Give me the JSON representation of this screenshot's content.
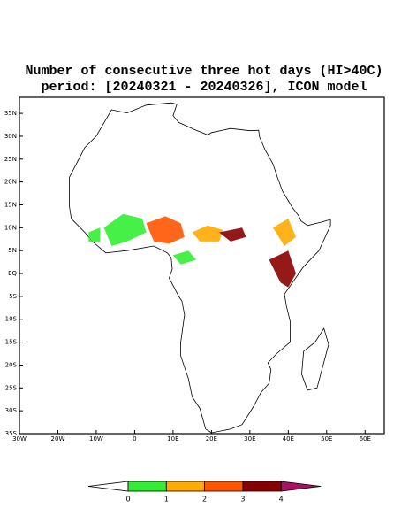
{
  "map": {
    "title": "Number of consecutive three hot days (HI>40C)",
    "subtitle": "period: [20240321 - 20240326], ICON model",
    "xlim": [
      -30,
      65
    ],
    "ylim": [
      -35,
      38.5
    ],
    "xticks": [
      {
        "value": -30,
        "label": "30W"
      },
      {
        "value": -20,
        "label": "20W"
      },
      {
        "value": -10,
        "label": "10W"
      },
      0,
      {
        "value": 10,
        "label": "10E"
      },
      {
        "value": 20,
        "label": "20E"
      },
      {
        "value": 30,
        "label": "30E"
      },
      {
        "value": 40,
        "label": "40E"
      },
      {
        "value": 50,
        "label": "50E"
      },
      {
        "value": 60,
        "label": "60E"
      }
    ],
    "yticks": [
      {
        "value": -35,
        "label": "35S"
      },
      {
        "value": -30,
        "label": "30S"
      },
      {
        "value": -25,
        "label": "25S"
      },
      {
        "value": -20,
        "label": "20S"
      },
      {
        "value": -15,
        "label": "15S"
      },
      {
        "value": -10,
        "label": "10S"
      },
      {
        "value": -5,
        "label": "5S"
      },
      {
        "value": 0,
        "label": "EQ"
      },
      {
        "value": 5,
        "label": "5N"
      },
      {
        "value": 10,
        "label": "10N"
      },
      {
        "value": 15,
        "label": "15N"
      },
      {
        "value": 20,
        "label": "20N"
      },
      {
        "value": 25,
        "label": "25N"
      },
      {
        "value": 30,
        "label": "30N"
      },
      {
        "value": 35,
        "label": "35N"
      }
    ],
    "colorbar": {
      "ticks": [
        0,
        1,
        2,
        3,
        4
      ],
      "colors": [
        "#ffffff",
        "#33ee33",
        "#ffaa00",
        "#ff5500",
        "#880000",
        "#aa1166"
      ]
    }
  }
}
